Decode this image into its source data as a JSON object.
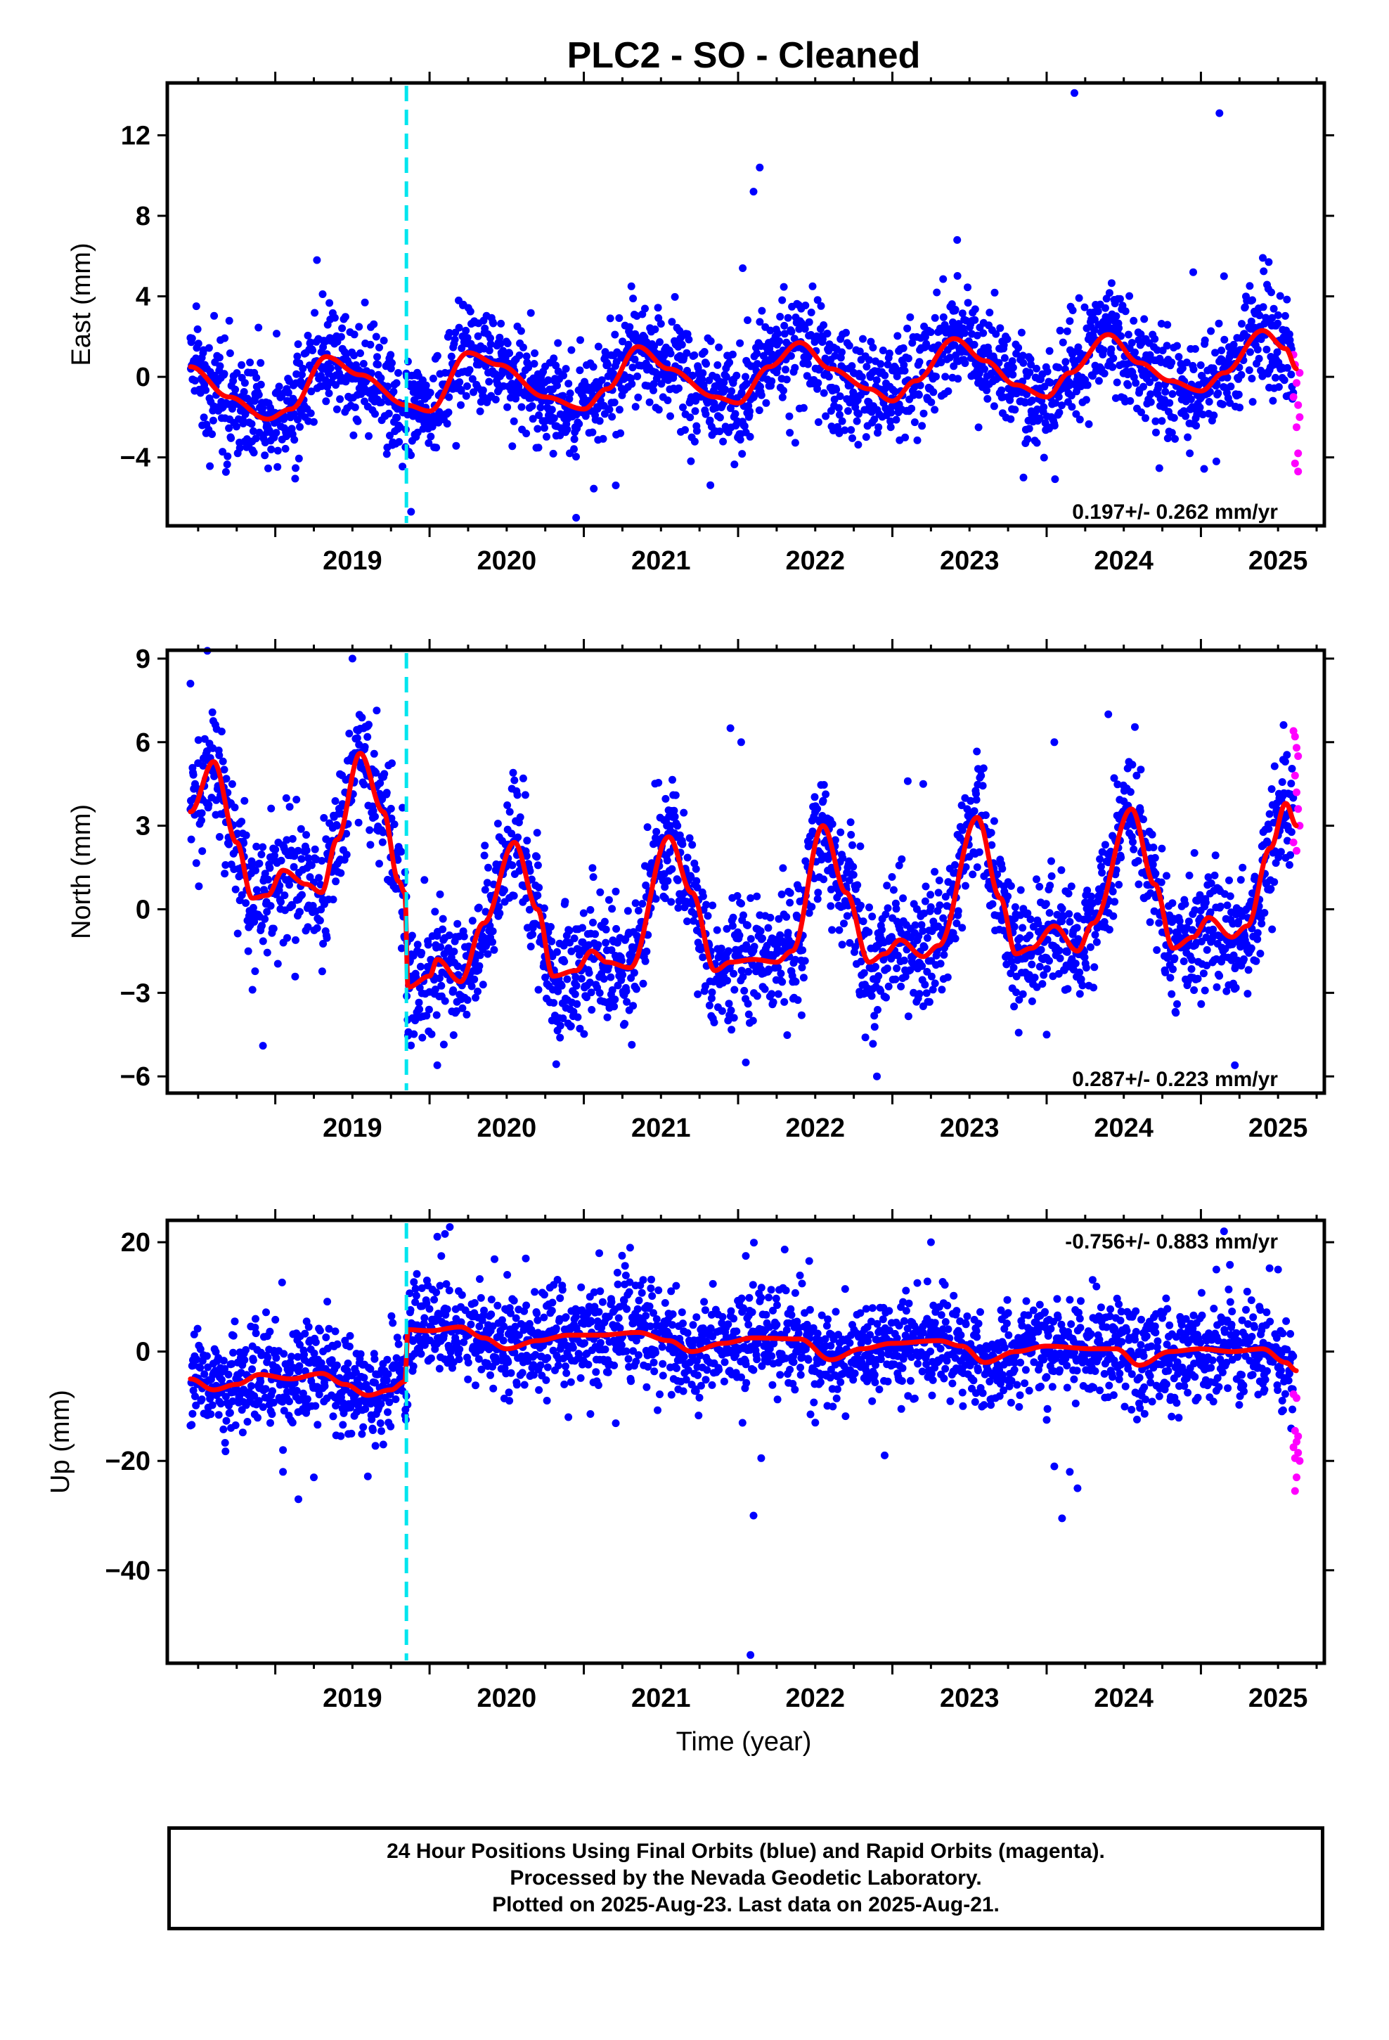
{
  "title": "PLC2  - SO - Cleaned",
  "colors": {
    "final_orbits": "#0000ff",
    "rapid_orbits": "#ff00ff",
    "trend_line": "#ff0000",
    "event_line": "#00e5ee"
  },
  "x_label": "Time (year)",
  "footer": {
    "line1": "24 Hour Positions Using Final Orbits (blue) and Rapid Orbits (magenta).",
    "line2": "Processed by the Nevada Geodetic Laboratory.",
    "line3": "Plotted on 2025-Aug-23. Last data on 2025-Aug-21."
  },
  "chart_data": [
    {
      "type": "scatter",
      "component": "east",
      "ylabel": "East (mm)",
      "xlim": [
        2018.3,
        2025.8
      ],
      "ylim": [
        -7.4,
        14.6
      ],
      "yticks": [
        -4,
        0,
        4,
        8,
        12
      ],
      "xticks": [
        2019,
        2020,
        2021,
        2022,
        2023,
        2024,
        2025
      ],
      "rate_text": "0.197+/- 0.262 mm/yr",
      "rate_position": "bottom-right",
      "event_line_x": 2019.85,
      "trend_knots": [
        [
          2018.45,
          0.5
        ],
        [
          2018.7,
          -1.0
        ],
        [
          2018.95,
          -2.1
        ],
        [
          2019.1,
          -1.6
        ],
        [
          2019.33,
          1.0
        ],
        [
          2019.55,
          0.1
        ],
        [
          2019.85,
          -1.4
        ],
        [
          2020.0,
          -1.7
        ],
        [
          2020.25,
          1.2
        ],
        [
          2020.45,
          0.6
        ],
        [
          2020.75,
          -1.0
        ],
        [
          2021.0,
          -1.6
        ],
        [
          2021.15,
          -0.6
        ],
        [
          2021.35,
          1.5
        ],
        [
          2021.55,
          0.4
        ],
        [
          2021.85,
          -1.0
        ],
        [
          2022.0,
          -1.3
        ],
        [
          2022.2,
          0.5
        ],
        [
          2022.4,
          1.7
        ],
        [
          2022.6,
          0.4
        ],
        [
          2022.85,
          -0.6
        ],
        [
          2023.0,
          -1.2
        ],
        [
          2023.15,
          -0.2
        ],
        [
          2023.4,
          1.9
        ],
        [
          2023.6,
          0.8
        ],
        [
          2023.8,
          -0.4
        ],
        [
          2024.0,
          -1.0
        ],
        [
          2024.15,
          0.2
        ],
        [
          2024.4,
          2.1
        ],
        [
          2024.6,
          0.7
        ],
        [
          2024.8,
          -0.2
        ],
        [
          2025.0,
          -0.7
        ],
        [
          2025.15,
          0.2
        ],
        [
          2025.4,
          2.3
        ],
        [
          2025.55,
          1.4
        ],
        [
          2025.62,
          0.4
        ]
      ],
      "scatter_sigma": 1.35,
      "outliers": [
        [
          2019.27,
          5.8
        ],
        [
          2019.88,
          -6.7
        ],
        [
          2020.95,
          -7.0
        ],
        [
          2022.1,
          9.2
        ],
        [
          2022.14,
          10.4
        ],
        [
          2022.03,
          5.4
        ],
        [
          2023.42,
          6.8
        ],
        [
          2023.85,
          -5.0
        ],
        [
          2024.18,
          14.1
        ],
        [
          2025.12,
          13.1
        ],
        [
          2025.1,
          -4.2
        ],
        [
          2024.95,
          5.2
        ],
        [
          2025.15,
          5.0
        ]
      ],
      "rapid_points": [
        [
          2025.6,
          1.1
        ],
        [
          2025.61,
          0.6
        ],
        [
          2025.62,
          -0.3
        ],
        [
          2025.63,
          -1.4
        ],
        [
          2025.64,
          -2.0
        ],
        [
          2025.62,
          -2.5
        ],
        [
          2025.63,
          -3.8
        ],
        [
          2025.61,
          -4.3
        ],
        [
          2025.63,
          -4.7
        ],
        [
          2025.64,
          0.2
        ],
        [
          2025.6,
          -1.0
        ]
      ]
    },
    {
      "type": "scatter",
      "component": "north",
      "ylabel": "North (mm)",
      "xlim": [
        2018.3,
        2025.8
      ],
      "ylim": [
        -6.6,
        9.3
      ],
      "yticks": [
        -6,
        -3,
        0,
        3,
        6,
        9
      ],
      "xticks": [
        2019,
        2020,
        2021,
        2022,
        2023,
        2024,
        2025
      ],
      "rate_text": "0.287+/- 0.223 mm/yr",
      "rate_position": "bottom-right",
      "event_line_x": 2019.85,
      "trend_knots": [
        [
          2018.45,
          3.5
        ],
        [
          2018.6,
          5.3
        ],
        [
          2018.75,
          2.4
        ],
        [
          2018.85,
          0.4
        ],
        [
          2018.95,
          0.5
        ],
        [
          2019.05,
          1.4
        ],
        [
          2019.2,
          0.9
        ],
        [
          2019.3,
          0.6
        ],
        [
          2019.4,
          2.5
        ],
        [
          2019.55,
          5.6
        ],
        [
          2019.7,
          3.5
        ],
        [
          2019.8,
          1.0
        ],
        [
          2019.84,
          0.6
        ],
        [
          2019.86,
          -2.8
        ],
        [
          2020.0,
          -2.4
        ],
        [
          2020.05,
          -1.8
        ],
        [
          2020.2,
          -2.6
        ],
        [
          2020.35,
          -0.5
        ],
        [
          2020.55,
          2.4
        ],
        [
          2020.7,
          0.0
        ],
        [
          2020.8,
          -2.4
        ],
        [
          2020.95,
          -2.2
        ],
        [
          2021.05,
          -1.5
        ],
        [
          2021.15,
          -1.9
        ],
        [
          2021.3,
          -2.1
        ],
        [
          2021.55,
          2.6
        ],
        [
          2021.7,
          0.6
        ],
        [
          2021.85,
          -2.2
        ],
        [
          2021.95,
          -1.9
        ],
        [
          2022.1,
          -1.8
        ],
        [
          2022.25,
          -1.9
        ],
        [
          2022.35,
          -1.5
        ],
        [
          2022.55,
          3.0
        ],
        [
          2022.7,
          0.6
        ],
        [
          2022.85,
          -1.9
        ],
        [
          2022.95,
          -1.6
        ],
        [
          2023.05,
          -1.1
        ],
        [
          2023.2,
          -1.7
        ],
        [
          2023.3,
          -1.3
        ],
        [
          2023.55,
          3.3
        ],
        [
          2023.7,
          0.4
        ],
        [
          2023.8,
          -1.6
        ],
        [
          2023.9,
          -1.4
        ],
        [
          2024.05,
          -0.6
        ],
        [
          2024.2,
          -1.5
        ],
        [
          2024.3,
          -0.5
        ],
        [
          2024.55,
          3.6
        ],
        [
          2024.7,
          0.9
        ],
        [
          2024.82,
          -1.4
        ],
        [
          2024.95,
          -1.0
        ],
        [
          2025.05,
          -0.3
        ],
        [
          2025.2,
          -1.0
        ],
        [
          2025.3,
          -0.6
        ],
        [
          2025.45,
          2.2
        ],
        [
          2025.55,
          3.8
        ],
        [
          2025.62,
          3.0
        ]
      ],
      "scatter_sigma": 1.15,
      "outliers": [
        [
          2018.45,
          8.1
        ],
        [
          2019.5,
          9.0
        ],
        [
          2018.92,
          -4.9
        ],
        [
          2020.05,
          -5.6
        ],
        [
          2021.95,
          6.5
        ],
        [
          2022.02,
          6.0
        ],
        [
          2022.05,
          -5.5
        ],
        [
          2023.2,
          4.5
        ],
        [
          2023.1,
          4.6
        ],
        [
          2024.4,
          7.0
        ],
        [
          2024.05,
          6.0
        ],
        [
          2025.22,
          -5.6
        ],
        [
          2024.0,
          -4.5
        ],
        [
          2022.9,
          -6.0
        ]
      ],
      "rapid_points": [
        [
          2025.6,
          6.4
        ],
        [
          2025.61,
          6.2
        ],
        [
          2025.62,
          5.8
        ],
        [
          2025.63,
          5.5
        ],
        [
          2025.61,
          4.8
        ],
        [
          2025.62,
          4.2
        ],
        [
          2025.63,
          3.6
        ],
        [
          2025.64,
          3.0
        ],
        [
          2025.6,
          2.4
        ],
        [
          2025.62,
          2.1
        ]
      ]
    },
    {
      "type": "scatter",
      "component": "up",
      "ylabel": "Up (mm)",
      "xlim": [
        2018.3,
        2025.8
      ],
      "ylim": [
        -57,
        24
      ],
      "yticks": [
        -40,
        -20,
        0,
        20
      ],
      "xticks": [
        2019,
        2020,
        2021,
        2022,
        2023,
        2024,
        2025
      ],
      "rate_text": "-0.756+/- 0.883 mm/yr",
      "rate_position": "top-right",
      "event_line_x": 2019.85,
      "trend_knots": [
        [
          2018.45,
          -5.0
        ],
        [
          2018.6,
          -7.0
        ],
        [
          2018.75,
          -6.0
        ],
        [
          2018.9,
          -4.2
        ],
        [
          2019.1,
          -5.0
        ],
        [
          2019.3,
          -4.0
        ],
        [
          2019.45,
          -6.0
        ],
        [
          2019.6,
          -8.0
        ],
        [
          2019.75,
          -7.0
        ],
        [
          2019.84,
          -5.5
        ],
        [
          2019.86,
          4.0
        ],
        [
          2020.0,
          3.8
        ],
        [
          2020.2,
          4.5
        ],
        [
          2020.35,
          2.5
        ],
        [
          2020.5,
          0.5
        ],
        [
          2020.7,
          2.0
        ],
        [
          2020.9,
          3.0
        ],
        [
          2021.1,
          3.0
        ],
        [
          2021.35,
          3.5
        ],
        [
          2021.55,
          2.0
        ],
        [
          2021.7,
          0.0
        ],
        [
          2021.9,
          1.5
        ],
        [
          2022.1,
          2.5
        ],
        [
          2022.4,
          2.3
        ],
        [
          2022.6,
          -1.5
        ],
        [
          2022.8,
          0.5
        ],
        [
          2023.0,
          1.5
        ],
        [
          2023.3,
          2.0
        ],
        [
          2023.45,
          1.0
        ],
        [
          2023.6,
          -2.0
        ],
        [
          2023.8,
          0.0
        ],
        [
          2024.0,
          1.0
        ],
        [
          2024.3,
          0.5
        ],
        [
          2024.45,
          0.5
        ],
        [
          2024.6,
          -2.5
        ],
        [
          2024.8,
          0.0
        ],
        [
          2025.0,
          0.5
        ],
        [
          2025.2,
          0.0
        ],
        [
          2025.4,
          0.5
        ],
        [
          2025.55,
          -2.0
        ],
        [
          2025.62,
          -3.5
        ]
      ],
      "scatter_sigma": 4.6,
      "outliers": [
        [
          2019.05,
          -22.0
        ],
        [
          2019.15,
          -27.0
        ],
        [
          2019.25,
          -23.0
        ],
        [
          2019.05,
          -18.0
        ],
        [
          2019.7,
          -17.0
        ],
        [
          2020.05,
          21.0
        ],
        [
          2020.1,
          21.5
        ],
        [
          2020.9,
          -12.0
        ],
        [
          2021.1,
          18.0
        ],
        [
          2021.3,
          19.0
        ],
        [
          2022.1,
          -30.0
        ],
        [
          2022.15,
          -19.5
        ],
        [
          2022.05,
          17.5
        ],
        [
          2022.08,
          -55.5
        ],
        [
          2022.5,
          -13.0
        ],
        [
          2022.95,
          -19.0
        ],
        [
          2023.25,
          20.0
        ],
        [
          2024.05,
          -21.0
        ],
        [
          2024.1,
          -30.5
        ],
        [
          2024.15,
          -22.0
        ],
        [
          2024.2,
          -25.0
        ],
        [
          2024.0,
          -12.5
        ],
        [
          2025.15,
          22.0
        ],
        [
          2025.5,
          15.0
        ],
        [
          2025.1,
          15.0
        ]
      ],
      "rapid_points": [
        [
          2025.6,
          -7.8
        ],
        [
          2025.62,
          -8.5
        ],
        [
          2025.61,
          -14.5
        ],
        [
          2025.63,
          -15.5
        ],
        [
          2025.62,
          -16.5
        ],
        [
          2025.6,
          -17.5
        ],
        [
          2025.63,
          -18.5
        ],
        [
          2025.61,
          -19.5
        ],
        [
          2025.64,
          -20.0
        ],
        [
          2025.62,
          -23.0
        ],
        [
          2025.61,
          -25.5
        ]
      ]
    }
  ]
}
